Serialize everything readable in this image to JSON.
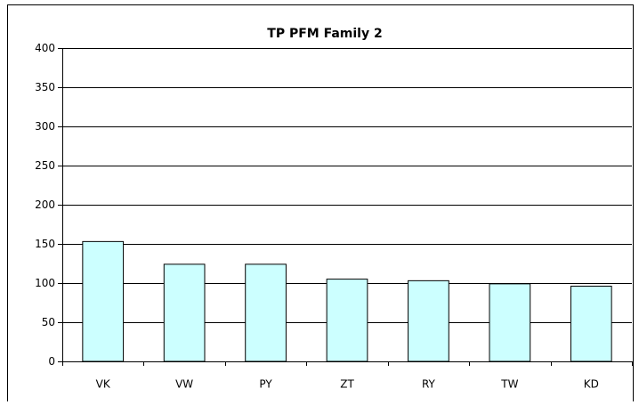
{
  "chart_data": {
    "type": "bar",
    "title": "TP PFM Family 2",
    "categories": [
      "VK",
      "VW",
      "PY",
      "ZT",
      "RY",
      "TW",
      "KD"
    ],
    "values": [
      153,
      124,
      124,
      105,
      103,
      99,
      96
    ],
    "color": "#ccffff",
    "ylim": [
      0,
      400
    ],
    "yticks": [
      0,
      50,
      100,
      150,
      200,
      250,
      300,
      350,
      400
    ],
    "grid": true
  }
}
